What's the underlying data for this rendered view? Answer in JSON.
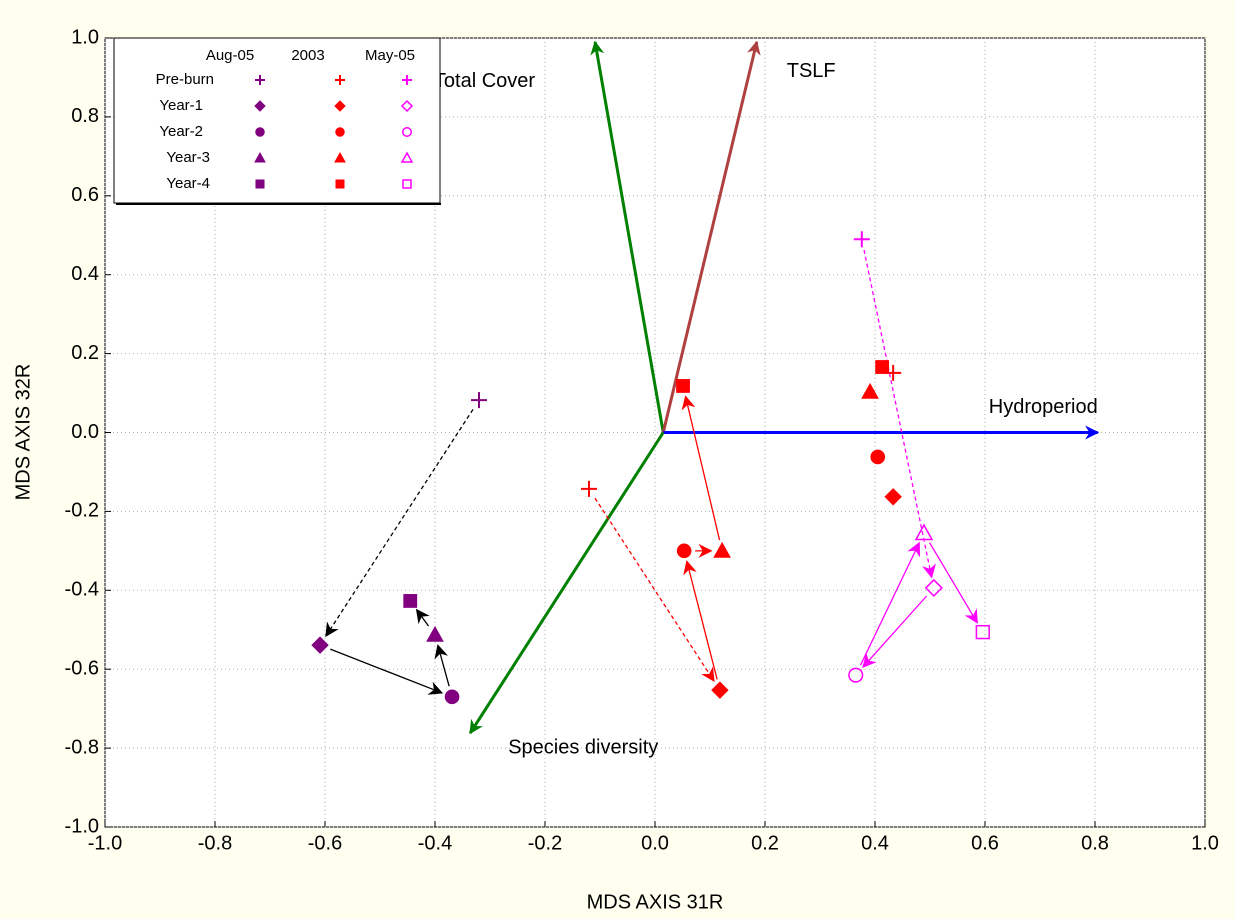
{
  "chart_data": {
    "type": "scatter",
    "x_label": "MDS AXIS 31R",
    "y_label": "MDS AXIS 32R",
    "xlim": [
      -1,
      1
    ],
    "ylim": [
      -1,
      1
    ],
    "xticks": [
      {
        "value": -1,
        "label": "-1.0"
      },
      -0.8,
      -0.6,
      -0.4,
      -0.2,
      {
        "value": 0,
        "label": "0.0"
      },
      0.2,
      0.4,
      0.6,
      0.8,
      {
        "value": 1,
        "label": "1.0"
      }
    ],
    "yticks": [
      {
        "value": -1,
        "label": "-1.0"
      },
      -0.8,
      -0.6,
      -0.4,
      -0.2,
      {
        "value": 0,
        "label": "0.0"
      },
      0.2,
      0.4,
      0.6,
      0.8,
      {
        "value": 1,
        "label": "1.0"
      }
    ],
    "grid": true,
    "legend": "upper left",
    "stages": [
      "Pre-burn",
      "Year-1",
      "Year-2",
      "Year-3",
      "Year-4"
    ],
    "markers": [
      "plus",
      "diamond",
      "circle",
      "triangle",
      "square"
    ],
    "series": [
      {
        "name": "Aug-05",
        "color": "#800080",
        "filled": true,
        "connect": true,
        "trajectory_color": "#000000",
        "x": [
          -0.32,
          -0.609,
          -0.369,
          -0.4,
          -0.445
        ],
        "y": [
          0.082,
          -0.539,
          -0.67,
          -0.513,
          -0.427
        ]
      },
      {
        "name": "2003",
        "color": "#ff0000",
        "filled": true,
        "connect": true,
        "trajectory_color": "#ff0000",
        "x": [
          -0.12,
          0.118,
          0.053,
          0.122,
          0.051
        ],
        "y": [
          -0.143,
          -0.653,
          -0.3,
          -0.3,
          0.118
        ]
      },
      {
        "name": "May-05",
        "color": "#ff00ff",
        "filled": false,
        "connect": true,
        "trajectory_color": "#ff00ff",
        "x": [
          0.376,
          0.507,
          0.365,
          0.489,
          0.596
        ],
        "y": [
          0.49,
          -0.394,
          -0.615,
          -0.255,
          -0.506
        ]
      },
      {
        "name": null,
        "color": "#ff0000",
        "filled": true,
        "connect": false,
        "x": [
          0.433,
          0.433,
          0.405,
          0.391,
          0.413
        ],
        "y": [
          0.151,
          -0.163,
          -0.062,
          0.103,
          0.166
        ]
      }
    ],
    "vector_origin": [
      0.015,
      0
    ],
    "vectors": [
      {
        "label": "Total Cover",
        "color": "#008000",
        "x": -0.109,
        "y": 0.99
      },
      {
        "label": "TSLF",
        "color": "#b04040",
        "x": 0.185,
        "y": 0.99
      },
      {
        "label": "Hydroperiod",
        "color": "#0000ff",
        "x": 0.805,
        "y": 0
      },
      {
        "label": "Species diversity",
        "color": "#008000",
        "x": -0.336,
        "y": -0.762
      }
    ]
  }
}
